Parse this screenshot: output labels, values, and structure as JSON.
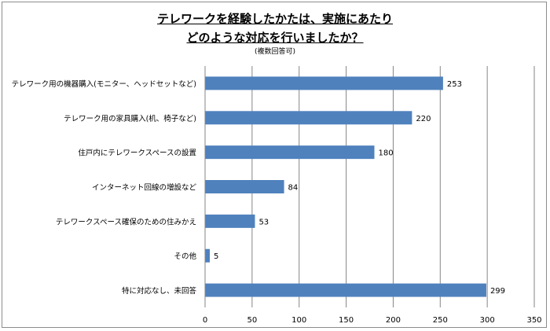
{
  "chart_data": {
    "type": "bar",
    "orientation": "horizontal",
    "title": [
      "テレワークを経験したかたは、実施にあたり",
      "どのような対応を行いましたか？"
    ],
    "subtitle": "(複数回答可)",
    "categories": [
      "テレワーク用の機器購入(モニター、ヘッドセットなど)",
      "テレワーク用の家具購入(机、椅子など)",
      "住戸内にテレワークスペースの設置",
      "インターネット回線の増設など",
      "テレワークスペース確保のための住みかえ",
      "その他",
      "特に対応なし、未回答"
    ],
    "values": [
      253,
      220,
      180,
      84,
      53,
      5,
      299
    ],
    "xlim": [
      0,
      350
    ],
    "xticks": [
      "0",
      "50",
      "100",
      "150",
      "200",
      "250",
      "300",
      "350"
    ],
    "grid": "vertical",
    "bar_color": "#4f81bd",
    "data_labels": true
  }
}
